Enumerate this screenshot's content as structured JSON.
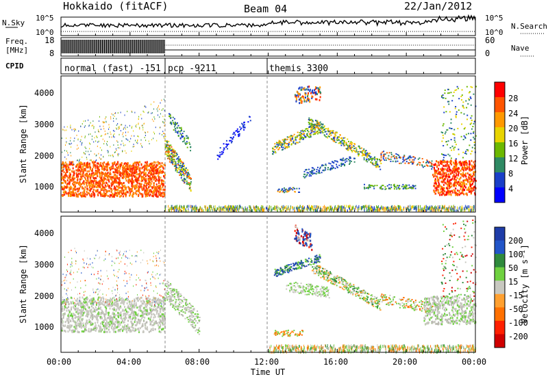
{
  "header": {
    "station": "Hokkaido (fitACF)",
    "beam": "Beam 04",
    "date": "22/Jan/2012"
  },
  "noise_panel": {
    "left_label": "N.Sky",
    "right_label": "N.Search",
    "left_ticks": [
      "10^5",
      "10^0"
    ],
    "right_ticks": [
      "10^5",
      "10^0"
    ]
  },
  "freq_panel": {
    "left_label_line1": "Freq.",
    "left_label_line2": "[MHz]",
    "right_label": "Nave",
    "left_ticks": [
      "18",
      "8"
    ],
    "right_ticks": [
      "60",
      "0"
    ]
  },
  "cpid_panel": {
    "label": "CPID",
    "modes": [
      {
        "name": "normal (fast) -151",
        "start_hour": 0
      },
      {
        "name": "pcp -9211",
        "start_hour": 6
      },
      {
        "name": "themis 3300",
        "start_hour": 12
      }
    ]
  },
  "chart_data": [
    {
      "type": "heatmap",
      "title": "Power",
      "ylabel": "Slant Range [km]",
      "ylim": [
        180,
        4500
      ],
      "yticks": [
        "4000",
        "3000",
        "2000",
        "1000"
      ],
      "colorbar_label": "Power [dB]",
      "colorbar_ticks": [
        "28",
        "24",
        "20",
        "16",
        "12",
        "8",
        "4"
      ],
      "colorbar_colors": [
        "#ff0000",
        "#ff5500",
        "#ff9900",
        "#e8d400",
        "#6cb800",
        "#2f8a64",
        "#1a3fc8",
        "#0000ff"
      ]
    },
    {
      "type": "heatmap",
      "title": "Velocity",
      "ylabel": "Slant Range [km]",
      "ylim": [
        180,
        4500
      ],
      "yticks": [
        "4000",
        "3000",
        "2000",
        "1000"
      ],
      "colorbar_label": "Velocity [m s⁻¹]",
      "colorbar_ticks": [
        "200",
        "100",
        "50",
        "15",
        "-15",
        "-50",
        "-100",
        "-200"
      ],
      "colorbar_colors": [
        "#1e3ca8",
        "#2255c8",
        "#2f8a3c",
        "#6fd140",
        "#c8c8c0",
        "#ffa030",
        "#ff7000",
        "#ff2000",
        "#d00000"
      ]
    }
  ],
  "x_axis": {
    "label": "Time UT",
    "ticks": [
      "00:00",
      "04:00",
      "08:00",
      "12:00",
      "16:00",
      "20:00",
      "00:00"
    ]
  }
}
